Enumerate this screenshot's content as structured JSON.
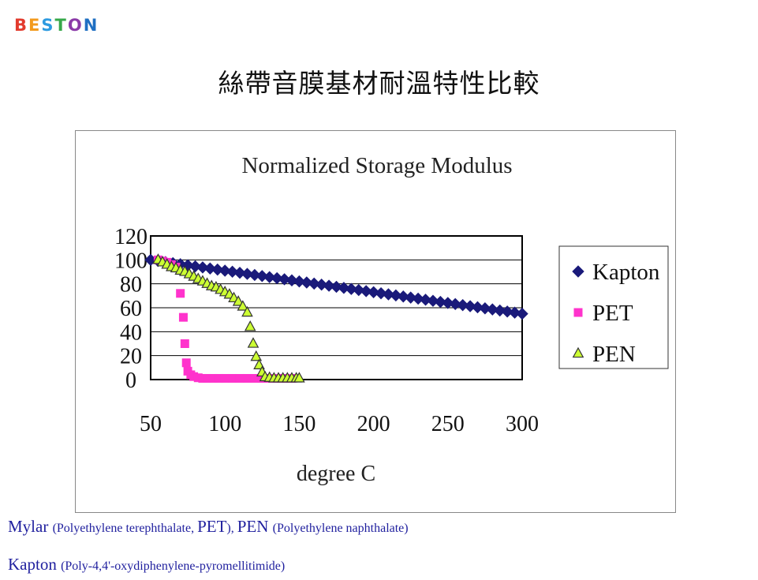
{
  "logo": {
    "text": "BESTON",
    "letter_colors": [
      "#e23b2e",
      "#f39a1c",
      "#2e9be0",
      "#36a84a",
      "#8b3aa8",
      "#1f6fc2"
    ]
  },
  "slide_title": "絲帶音膜基材耐溫特性比較",
  "footnotes": [
    {
      "parts": [
        {
          "text": "Mylar ",
          "size": "big"
        },
        {
          "text": "(Polyethylene terephthalate, ",
          "size": "small"
        },
        {
          "text": "PET",
          "size": "big"
        },
        {
          "text": "),  ",
          "size": "small"
        },
        {
          "text": "PEN ",
          "size": "big"
        },
        {
          "text": "(Polyethylene naphthalate)",
          "size": "small"
        }
      ]
    },
    {
      "parts": [
        {
          "text": "Kapton ",
          "size": "big"
        },
        {
          "text": "(Poly-4,4'-oxydiphenylene-pyromellitimide)",
          "size": "small"
        }
      ]
    }
  ],
  "chart_data": {
    "type": "scatter",
    "title": "Normalized Storage Modulus",
    "xlabel": "degree C",
    "ylabel": "",
    "xlim": [
      50,
      300
    ],
    "ylim": [
      0,
      120
    ],
    "x_ticks": [
      "50",
      "100",
      "150",
      "200",
      "250",
      "300"
    ],
    "y_ticks": [
      "0",
      "20",
      "40",
      "60",
      "80",
      "100",
      "120"
    ],
    "grid": "horizontal",
    "legend": "right",
    "series": [
      {
        "name": "Kapton",
        "marker": "diamond",
        "color": "#1a1a7a",
        "x": [
          50,
          55,
          60,
          65,
          70,
          75,
          80,
          85,
          90,
          95,
          100,
          105,
          110,
          115,
          120,
          125,
          130,
          135,
          140,
          145,
          150,
          155,
          160,
          165,
          170,
          175,
          180,
          185,
          190,
          195,
          200,
          205,
          210,
          215,
          220,
          225,
          230,
          235,
          240,
          245,
          250,
          255,
          260,
          265,
          270,
          275,
          280,
          285,
          290,
          295,
          300
        ],
        "y": [
          100,
          99.1,
          98.2,
          97.3,
          96.4,
          95.5,
          94.6,
          93.7,
          92.8,
          91.9,
          91,
          90.1,
          89.2,
          88.3,
          87.4,
          86.5,
          85.6,
          84.7,
          83.8,
          82.9,
          82,
          81.1,
          80.2,
          79.3,
          78.4,
          77.5,
          76.6,
          75.7,
          74.8,
          73.9,
          73,
          72.1,
          71.2,
          70.3,
          69.4,
          68.5,
          67.6,
          66.7,
          65.8,
          64.9,
          64,
          63.1,
          62.2,
          61.3,
          60.4,
          59.5,
          58.6,
          57.7,
          56.8,
          55.9,
          55
        ]
      },
      {
        "name": "PET",
        "marker": "square",
        "color": "#ff33cc",
        "x": [
          55,
          58,
          61,
          64,
          67,
          70,
          72,
          73,
          74,
          75,
          77,
          79,
          82,
          85,
          88,
          92,
          96,
          100,
          105,
          110,
          115,
          120,
          125,
          130,
          135,
          140,
          145
        ],
        "y": [
          100,
          99,
          98,
          96,
          94,
          72,
          52,
          30,
          14,
          7,
          4,
          2.5,
          1.5,
          1,
          1,
          1,
          1,
          1,
          1,
          1,
          1,
          1,
          1,
          1,
          1,
          1,
          1
        ]
      },
      {
        "name": "PEN",
        "marker": "triangle",
        "color": "#ccff33",
        "x": [
          55,
          58,
          61,
          64,
          67,
          70,
          73,
          76,
          79,
          82,
          85,
          88,
          91,
          94,
          97,
          100,
          103,
          106,
          109,
          112,
          115,
          117,
          119,
          121,
          123,
          125,
          127,
          130,
          133,
          136,
          139,
          142,
          145,
          148,
          150
        ],
        "y": [
          100,
          98,
          96,
          94,
          93,
          91,
          90,
          88,
          86,
          84,
          82,
          80,
          78,
          77,
          75,
          73,
          71,
          68,
          65,
          61,
          56,
          44,
          30,
          19,
          12,
          6,
          2,
          1.5,
          1,
          1,
          1,
          1,
          1,
          1,
          1
        ]
      }
    ]
  }
}
